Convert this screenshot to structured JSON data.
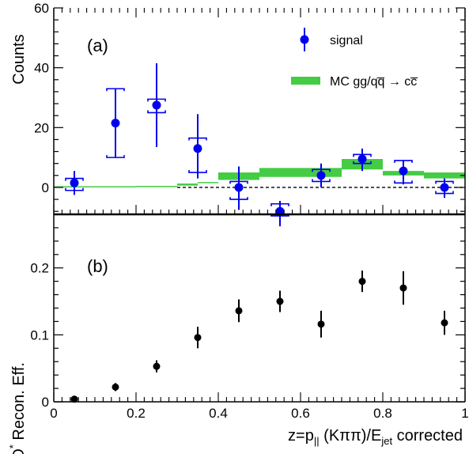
{
  "colors": {
    "signal": "#0000ee",
    "mc_band": "#44cc44",
    "efficiency": "#000000",
    "axis": "#000000"
  },
  "chart_data": [
    {
      "type": "scatter",
      "panel_label": "(a)",
      "ylabel": "Counts",
      "xlim": [
        0,
        1
      ],
      "ylim": [
        -9,
        60
      ],
      "y_ticks": [
        0,
        20,
        40,
        60
      ],
      "y_tick_labels": [
        "0",
        "20",
        "40",
        "60"
      ],
      "zero_line": "dashed",
      "legend_placement": "top-right",
      "series": [
        {
          "name": "signal",
          "style": "points-with-errors",
          "x": [
            0.05,
            0.15,
            0.25,
            0.35,
            0.45,
            0.55,
            0.65,
            0.75,
            0.85,
            0.95
          ],
          "y": [
            1.5,
            21.5,
            27.5,
            13,
            0,
            -8,
            4,
            9.5,
            5.5,
            0
          ],
          "stat_err_low": [
            4,
            11.5,
            14,
            10,
            7.5,
            5,
            4,
            4,
            4.5,
            3.5
          ],
          "stat_err_high": [
            4,
            11.5,
            14,
            11.5,
            7,
            3.5,
            4,
            3.5,
            3.5,
            3
          ],
          "sys_low": [
            2.5,
            11.5,
            2.5,
            8,
            4,
            1.5,
            2,
            1.5,
            4,
            2
          ],
          "sys_high": [
            1.5,
            11.5,
            2,
            3.5,
            2,
            2.5,
            2,
            1.5,
            3.5,
            2
          ]
        },
        {
          "name": "MC gg/qq̅ → cc̅",
          "style": "histogram-band",
          "bin_edges": [
            0.0,
            0.1,
            0.2,
            0.3,
            0.35,
            0.4,
            0.5,
            0.6,
            0.7,
            0.8,
            0.9,
            1.0
          ],
          "low": [
            0.0,
            0.0,
            0.1,
            0.6,
            1.5,
            2.5,
            3.5,
            3.5,
            6.0,
            4.0,
            3.0
          ],
          "high": [
            0.4,
            0.4,
            0.5,
            1.3,
            1.8,
            5.0,
            6.5,
            6.5,
            9.5,
            5.5,
            5.0
          ]
        }
      ]
    },
    {
      "type": "scatter",
      "panel_label": "(b)",
      "ylabel_main": "D",
      "ylabel_superscript": "*",
      "ylabel_rest": " Recon. Eff.",
      "xlabel_pre": "z=p",
      "xlabel_sub1": "||",
      "xlabel_mid": " (Kππ)/E",
      "xlabel_sub2": "jet",
      "xlabel_post": " corrected",
      "xlim": [
        0,
        1
      ],
      "ylim": [
        0,
        0.28
      ],
      "x_ticks": [
        0,
        0.2,
        0.4,
        0.6,
        0.8,
        1
      ],
      "x_tick_labels": [
        "0",
        "0.2",
        "0.4",
        "0.6",
        "0.8",
        "1"
      ],
      "y_ticks": [
        0,
        0.1,
        0.2
      ],
      "y_tick_labels": [
        "0",
        "0.1",
        "0.2"
      ],
      "series": [
        {
          "style": "points-with-errors",
          "x": [
            0.05,
            0.15,
            0.25,
            0.35,
            0.45,
            0.55,
            0.65,
            0.75,
            0.85,
            0.95
          ],
          "y": [
            0.004,
            0.022,
            0.053,
            0.096,
            0.136,
            0.15,
            0.116,
            0.18,
            0.17,
            0.118
          ],
          "err": [
            0.003,
            0.006,
            0.009,
            0.016,
            0.017,
            0.016,
            0.02,
            0.016,
            0.025,
            0.018
          ]
        }
      ]
    }
  ]
}
